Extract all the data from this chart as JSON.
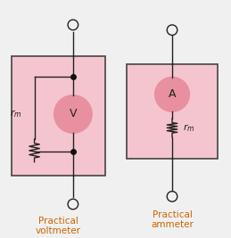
{
  "bg_color": "#f0f0f0",
  "box_fill": "#f5c5cf",
  "box_edge": "#444444",
  "circle_fill": "#e8909f",
  "circle_edge": "#444444",
  "wire_color": "#222222",
  "dot_color": "#111111",
  "text_color": "#222222",
  "label_color": "#cc6600",
  "voltmeter_label": "Practical\nvoltmeter",
  "ammeter_label": "Practical\nammeter",
  "vm_symbol": "V",
  "am_symbol": "A",
  "rm_label": "$r_m$",
  "figsize": [
    2.59,
    2.67
  ],
  "dpi": 100
}
